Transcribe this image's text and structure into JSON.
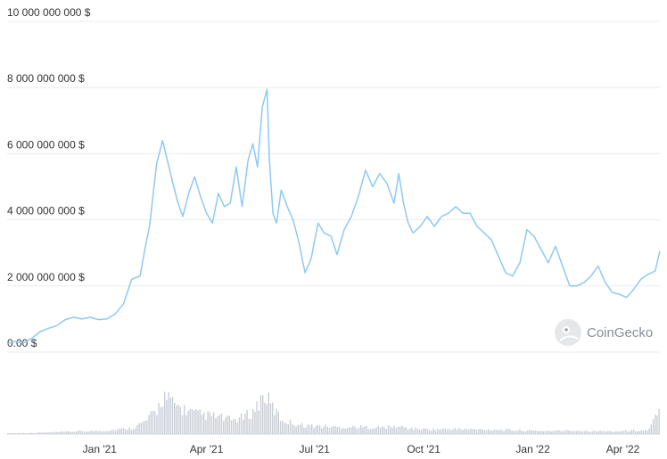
{
  "watermark": {
    "text": "CoinGecko",
    "icon": "gecko-logo-icon"
  },
  "colors": {
    "line": "#8ec9f3",
    "volume": "#c9ced6",
    "grid": "#e9ecef",
    "text": "#333333"
  },
  "chart_data": {
    "type": "line",
    "title": "",
    "xlabel": "",
    "ylabel": "",
    "ylim": [
      0,
      10000000000
    ],
    "y_ticks": [
      {
        "value": 0,
        "label": "0.00 $"
      },
      {
        "value": 2000000000,
        "label": "2 000 000 000 $"
      },
      {
        "value": 4000000000,
        "label": "4 000 000 000 $"
      },
      {
        "value": 6000000000,
        "label": "6 000 000 000 $"
      },
      {
        "value": 8000000000,
        "label": "8 000 000 000 $"
      },
      {
        "value": 10000000000,
        "label": "10 000 000 000 $"
      }
    ],
    "x_range": [
      "2020-10-15",
      "2022-04-18"
    ],
    "x_ticks": [
      {
        "date": "2021-01-01",
        "label": "Jan '21"
      },
      {
        "date": "2021-04-01",
        "label": "Apr '21"
      },
      {
        "date": "2021-07-01",
        "label": "Jul '21"
      },
      {
        "date": "2021-10-01",
        "label": "Oct '21"
      },
      {
        "date": "2022-01-01",
        "label": "Jan '22"
      },
      {
        "date": "2022-04-01",
        "label": "Apr '22"
      }
    ],
    "grid": true,
    "legend": "none",
    "series": [
      {
        "values": [
          [
            "2020-10-15",
            250000000
          ],
          [
            "2020-10-22",
            320000000
          ],
          [
            "2020-10-29",
            280000000
          ],
          [
            "2020-11-05",
            420000000
          ],
          [
            "2020-11-12",
            620000000
          ],
          [
            "2020-11-19",
            720000000
          ],
          [
            "2020-11-26",
            800000000
          ],
          [
            "2020-12-03",
            980000000
          ],
          [
            "2020-12-10",
            1050000000
          ],
          [
            "2020-12-17",
            1000000000
          ],
          [
            "2020-12-24",
            1050000000
          ],
          [
            "2020-12-31",
            980000000
          ],
          [
            "2021-01-07",
            1000000000
          ],
          [
            "2021-01-14",
            1150000000
          ],
          [
            "2021-01-21",
            1450000000
          ],
          [
            "2021-01-28",
            2200000000
          ],
          [
            "2021-02-04",
            2300000000
          ],
          [
            "2021-02-08",
            3100000000
          ],
          [
            "2021-02-12",
            3800000000
          ],
          [
            "2021-02-18",
            5700000000
          ],
          [
            "2021-02-23",
            6400000000
          ],
          [
            "2021-02-27",
            5800000000
          ],
          [
            "2021-03-03",
            5200000000
          ],
          [
            "2021-03-08",
            4500000000
          ],
          [
            "2021-03-12",
            4100000000
          ],
          [
            "2021-03-17",
            4800000000
          ],
          [
            "2021-03-22",
            5300000000
          ],
          [
            "2021-03-27",
            4700000000
          ],
          [
            "2021-04-01",
            4200000000
          ],
          [
            "2021-04-06",
            3900000000
          ],
          [
            "2021-04-11",
            4800000000
          ],
          [
            "2021-04-16",
            4400000000
          ],
          [
            "2021-04-21",
            4500000000
          ],
          [
            "2021-04-26",
            5600000000
          ],
          [
            "2021-05-01",
            4400000000
          ],
          [
            "2021-05-06",
            5800000000
          ],
          [
            "2021-05-10",
            6300000000
          ],
          [
            "2021-05-14",
            5600000000
          ],
          [
            "2021-05-18",
            7400000000
          ],
          [
            "2021-05-22",
            7950000000
          ],
          [
            "2021-05-24",
            5800000000
          ],
          [
            "2021-05-27",
            4200000000
          ],
          [
            "2021-05-30",
            3900000000
          ],
          [
            "2021-06-03",
            4900000000
          ],
          [
            "2021-06-08",
            4400000000
          ],
          [
            "2021-06-13",
            4000000000
          ],
          [
            "2021-06-18",
            3300000000
          ],
          [
            "2021-06-23",
            2400000000
          ],
          [
            "2021-06-28",
            2800000000
          ],
          [
            "2021-07-04",
            3900000000
          ],
          [
            "2021-07-09",
            3600000000
          ],
          [
            "2021-07-15",
            3500000000
          ],
          [
            "2021-07-20",
            2950000000
          ],
          [
            "2021-07-26",
            3700000000
          ],
          [
            "2021-08-01",
            4100000000
          ],
          [
            "2021-08-07",
            4700000000
          ],
          [
            "2021-08-13",
            5500000000
          ],
          [
            "2021-08-19",
            5000000000
          ],
          [
            "2021-08-25",
            5400000000
          ],
          [
            "2021-08-31",
            5100000000
          ],
          [
            "2021-09-06",
            4500000000
          ],
          [
            "2021-09-10",
            5400000000
          ],
          [
            "2021-09-14",
            4500000000
          ],
          [
            "2021-09-18",
            3900000000
          ],
          [
            "2021-09-22",
            3600000000
          ],
          [
            "2021-09-28",
            3800000000
          ],
          [
            "2021-10-04",
            4100000000
          ],
          [
            "2021-10-10",
            3800000000
          ],
          [
            "2021-10-16",
            4100000000
          ],
          [
            "2021-10-22",
            4200000000
          ],
          [
            "2021-10-28",
            4400000000
          ],
          [
            "2021-11-03",
            4200000000
          ],
          [
            "2021-11-09",
            4200000000
          ],
          [
            "2021-11-15",
            3800000000
          ],
          [
            "2021-11-21",
            3600000000
          ],
          [
            "2021-11-27",
            3400000000
          ],
          [
            "2021-12-03",
            2900000000
          ],
          [
            "2021-12-09",
            2400000000
          ],
          [
            "2021-12-15",
            2300000000
          ],
          [
            "2021-12-21",
            2700000000
          ],
          [
            "2021-12-27",
            3700000000
          ],
          [
            "2022-01-02",
            3500000000
          ],
          [
            "2022-01-08",
            3100000000
          ],
          [
            "2022-01-14",
            2700000000
          ],
          [
            "2022-01-20",
            3200000000
          ],
          [
            "2022-01-26",
            2600000000
          ],
          [
            "2022-02-01",
            2000000000
          ],
          [
            "2022-02-07",
            2000000000
          ],
          [
            "2022-02-13",
            2100000000
          ],
          [
            "2022-02-19",
            2300000000
          ],
          [
            "2022-02-25",
            2600000000
          ],
          [
            "2022-03-03",
            2100000000
          ],
          [
            "2022-03-09",
            1800000000
          ],
          [
            "2022-03-15",
            1750000000
          ],
          [
            "2022-03-21",
            1650000000
          ],
          [
            "2022-03-27",
            1900000000
          ],
          [
            "2022-04-02",
            2200000000
          ],
          [
            "2022-04-08",
            2350000000
          ],
          [
            "2022-04-14",
            2450000000
          ],
          [
            "2022-04-18",
            3050000000
          ]
        ]
      }
    ],
    "volume_series": [
      [
        "2020-10-15",
        0.02
      ],
      [
        "2020-11-05",
        0.03
      ],
      [
        "2020-11-26",
        0.05
      ],
      [
        "2020-12-17",
        0.07
      ],
      [
        "2021-01-07",
        0.09
      ],
      [
        "2021-01-28",
        0.16
      ],
      [
        "2021-02-08",
        0.32
      ],
      [
        "2021-02-18",
        0.62
      ],
      [
        "2021-02-23",
        1.0
      ],
      [
        "2021-03-03",
        0.78
      ],
      [
        "2021-03-12",
        0.64
      ],
      [
        "2021-03-22",
        0.52
      ],
      [
        "2021-04-01",
        0.48
      ],
      [
        "2021-04-11",
        0.44
      ],
      [
        "2021-04-21",
        0.36
      ],
      [
        "2021-05-01",
        0.42
      ],
      [
        "2021-05-10",
        0.58
      ],
      [
        "2021-05-19",
        1.02
      ],
      [
        "2021-05-24",
        0.78
      ],
      [
        "2021-06-03",
        0.36
      ],
      [
        "2021-06-18",
        0.24
      ],
      [
        "2021-07-04",
        0.2
      ],
      [
        "2021-07-20",
        0.18
      ],
      [
        "2021-08-07",
        0.18
      ],
      [
        "2021-08-25",
        0.17
      ],
      [
        "2021-09-10",
        0.19
      ],
      [
        "2021-09-22",
        0.14
      ],
      [
        "2021-10-10",
        0.12
      ],
      [
        "2021-10-28",
        0.13
      ],
      [
        "2021-11-15",
        0.12
      ],
      [
        "2021-12-03",
        0.11
      ],
      [
        "2021-12-15",
        0.1
      ],
      [
        "2021-12-27",
        0.09
      ],
      [
        "2022-01-14",
        0.08
      ],
      [
        "2022-02-01",
        0.09
      ],
      [
        "2022-02-19",
        0.08
      ],
      [
        "2022-03-09",
        0.07
      ],
      [
        "2022-03-27",
        0.09
      ],
      [
        "2022-04-08",
        0.1
      ],
      [
        "2022-04-16",
        0.56
      ]
    ]
  }
}
